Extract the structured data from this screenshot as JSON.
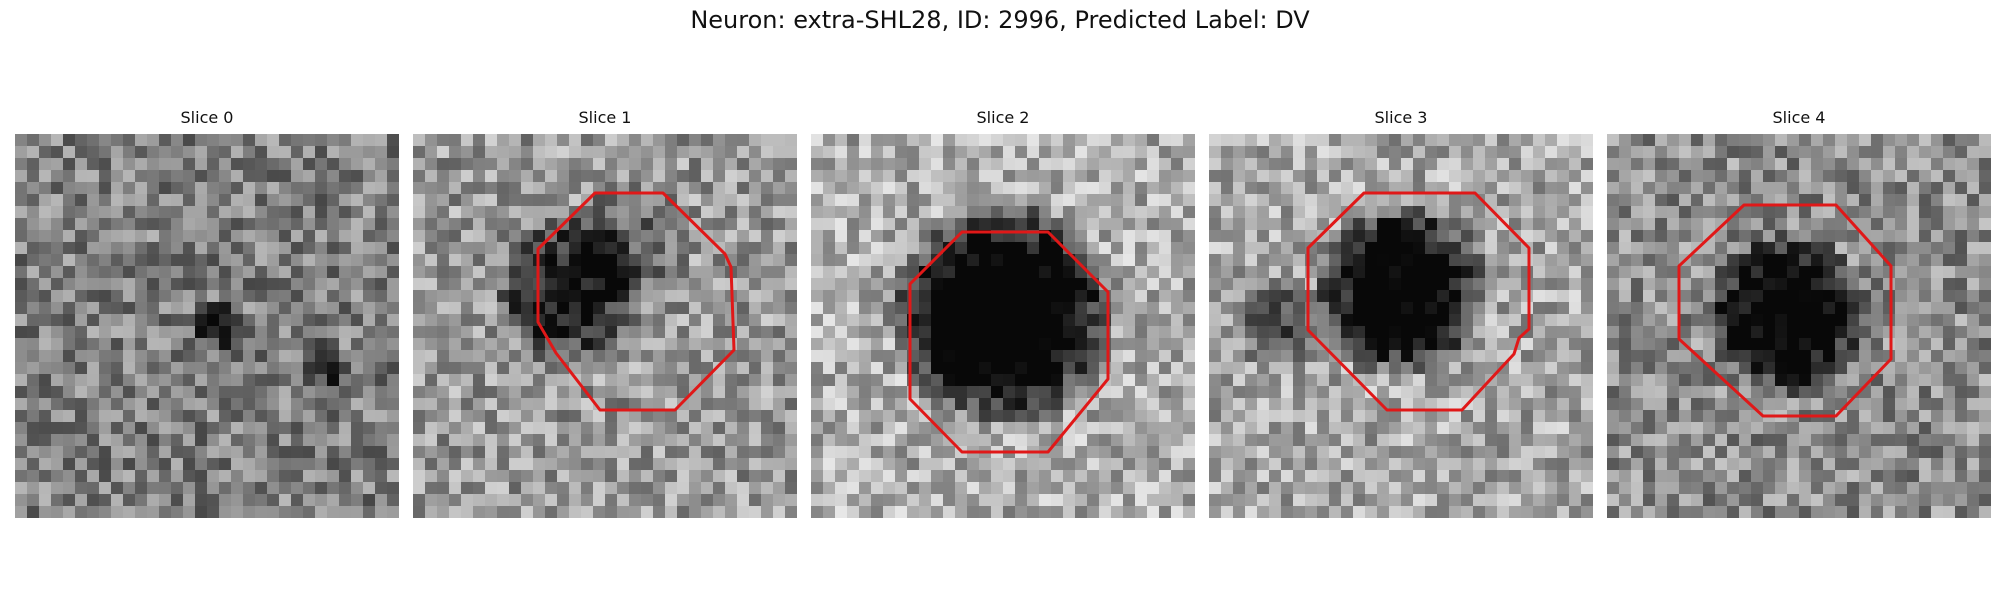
{
  "figure": {
    "title": "Neuron: extra-SHL28, ID: 2996, Predicted Label: DV",
    "roi_color": "#e01818"
  },
  "panels": [
    {
      "title": "Slice 0",
      "has_roi": false
    },
    {
      "title": "Slice 1",
      "has_roi": true
    },
    {
      "title": "Slice 2",
      "has_roi": true
    },
    {
      "title": "Slice 3",
      "has_roi": true
    },
    {
      "title": "Slice 4",
      "has_roi": true
    }
  ]
}
